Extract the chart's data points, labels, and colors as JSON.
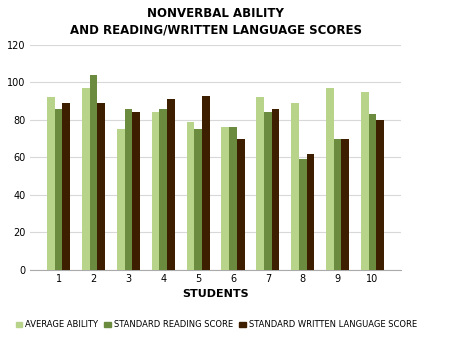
{
  "title": "NONVERBAL ABILITY\nAND READING/WRITTEN LANGUAGE SCORES",
  "xlabel": "STUDENTS",
  "students": [
    1,
    2,
    3,
    4,
    5,
    6,
    7,
    8,
    9,
    10
  ],
  "average_ability": [
    92,
    97,
    75,
    84,
    79,
    76,
    92,
    89,
    97,
    95
  ],
  "standard_reading_score": [
    86,
    104,
    86,
    86,
    75,
    76,
    84,
    59,
    70,
    83
  ],
  "standard_written_language": [
    89,
    89,
    84,
    91,
    93,
    70,
    86,
    62,
    70,
    80
  ],
  "color_ability": "#b8d48a",
  "color_reading": "#6b8c3e",
  "color_written": "#3d1f00",
  "ylim": [
    0,
    120
  ],
  "yticks": [
    0,
    20,
    40,
    60,
    80,
    100,
    120
  ],
  "legend_labels": [
    "AVERAGE ABILITY",
    "STANDARD READING SCORE",
    "STANDARD WRITTEN LANGUAGE SCORE"
  ],
  "background_color": "#ffffff",
  "grid_color": "#d8d8d8",
  "title_fontsize": 8.5,
  "axis_label_fontsize": 8,
  "tick_fontsize": 7,
  "legend_fontsize": 6
}
